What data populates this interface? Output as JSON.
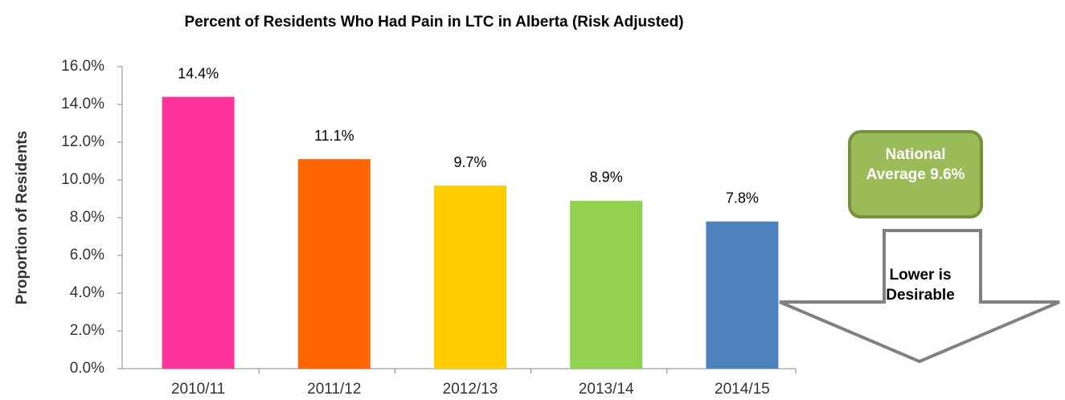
{
  "chart_data": {
    "type": "bar",
    "title": "Percent of Residents Who Had Pain in LTC in Alberta (Risk Adjusted)",
    "ylabel": "Proportion of Residents",
    "categories": [
      "2010/11",
      "2011/12",
      "2012/13",
      "2013/14",
      "2014/15"
    ],
    "values": [
      14.4,
      11.1,
      9.7,
      8.9,
      7.8
    ],
    "value_labels": [
      "14.4%",
      "11.1%",
      "9.7%",
      "8.9%",
      "7.8%"
    ],
    "colors": [
      "#ff3399",
      "#ff6600",
      "#ffcc00",
      "#92d050",
      "#4f81bd"
    ],
    "ylim": [
      0,
      16
    ],
    "yticks": [
      {
        "value": 0,
        "label": "0.0%"
      },
      {
        "value": 2,
        "label": "2.0%"
      },
      {
        "value": 4,
        "label": "4.0%"
      },
      {
        "value": 6,
        "label": "6.0%"
      },
      {
        "value": 8,
        "label": "8.0%"
      },
      {
        "value": 10,
        "label": "10.0%"
      },
      {
        "value": 12,
        "label": "12.0%"
      },
      {
        "value": 14,
        "label": "14.0%"
      },
      {
        "value": 16,
        "label": "16.0%"
      }
    ],
    "grid": false,
    "annotations": [
      "National Average 9.6%",
      "Lower is Desirable"
    ]
  }
}
